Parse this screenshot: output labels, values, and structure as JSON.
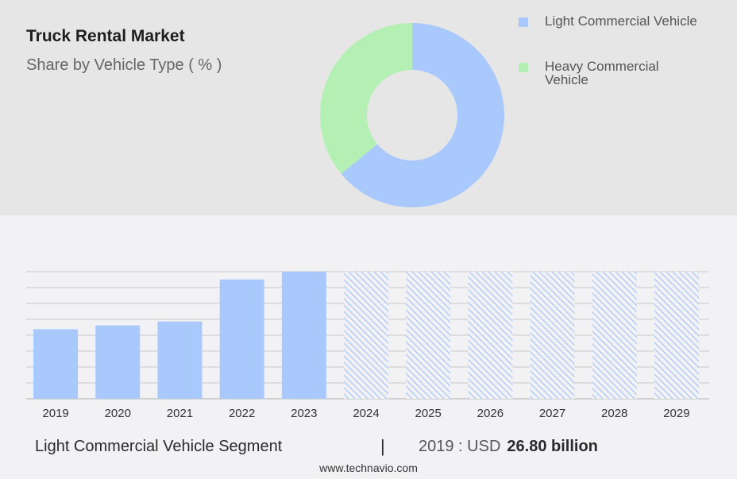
{
  "header": {
    "title": "Truck Rental Market",
    "subtitle": "Share by Vehicle Type ( % )"
  },
  "legend": [
    {
      "label": "Light Commercial Vehicle",
      "color": "#a9c8fc"
    },
    {
      "label": "Heavy Commercial Vehicle",
      "color": "#b4f0b4"
    }
  ],
  "footer": {
    "segment": "Light Commercial Vehicle Segment",
    "divider": "|",
    "year_prefix": "2019 : USD",
    "value": "26.80 billion",
    "source": "www.technavio.com"
  },
  "chart_data": [
    {
      "type": "pie",
      "style": "donut",
      "title": "Share by Vehicle Type ( % )",
      "slices": [
        {
          "name": "Light Commercial Vehicle",
          "value": 64,
          "color": "#a9c8fc"
        },
        {
          "name": "Heavy Commercial Vehicle",
          "value": 36,
          "color": "#b4f0b4"
        }
      ]
    },
    {
      "type": "bar",
      "categories": [
        "2019",
        "2020",
        "2021",
        "2022",
        "2023",
        "2024",
        "2025",
        "2026",
        "2027",
        "2028",
        "2029"
      ],
      "values": [
        26.8,
        28.3,
        29.8,
        46.0,
        49.0,
        null,
        null,
        null,
        null,
        null,
        null
      ],
      "forecast_categories": [
        "2024",
        "2025",
        "2026",
        "2027",
        "2028",
        "2029"
      ],
      "ylim": [
        0,
        49
      ],
      "grid": true,
      "bar_color": "#a9c8fc",
      "forecast_style": "hatched"
    }
  ]
}
